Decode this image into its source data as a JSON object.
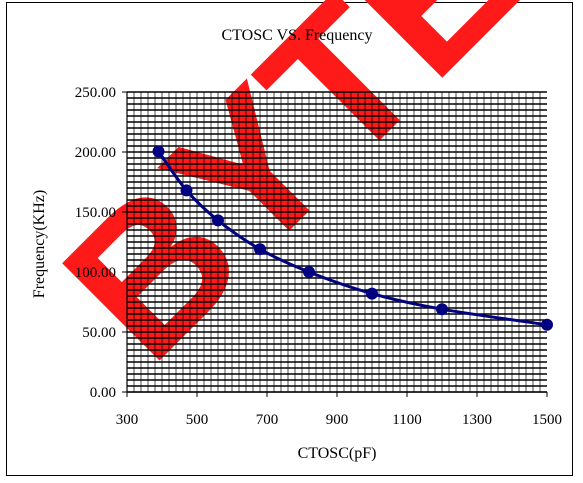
{
  "chart_data": {
    "type": "line",
    "title": "CTOSC VS. Frequency",
    "xlabel": "CTOSC(pF)",
    "ylabel": "Frequency(KHz)",
    "xlim": [
      300,
      1500
    ],
    "ylim": [
      0,
      250
    ],
    "x_ticks": [
      "300",
      "500",
      "700",
      "900",
      "1100",
      "1300",
      "1500"
    ],
    "y_ticks": [
      "0.00",
      "50.00",
      "100.00",
      "150.00",
      "200.00",
      "250.00"
    ],
    "grid": true,
    "legend": "none",
    "series": [
      {
        "color": "#000080",
        "x": [
          390,
          470,
          560,
          680,
          820,
          1000,
          1200,
          1500
        ],
        "y": [
          200.5,
          168,
          143,
          119,
          100,
          82,
          69,
          56
        ]
      }
    ]
  },
  "watermark": {
    "text": "BYTE",
    "color": "#ff1a1a"
  }
}
